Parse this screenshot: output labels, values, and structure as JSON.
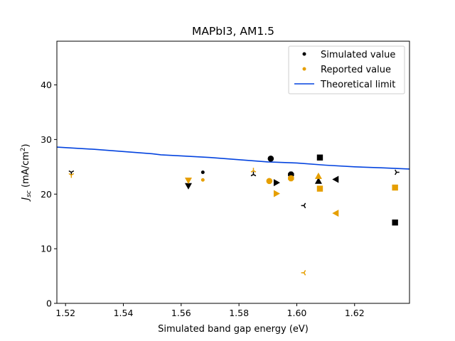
{
  "chart_data": {
    "type": "scatter",
    "title": "MAPbI3, AM1.5",
    "xlabel": "Simulated band gap energy (eV)",
    "ylabel_main": "J",
    "ylabel_sub": "sc",
    "ylabel_unit": " (mA/cm",
    "ylabel_sup": "2",
    "ylabel_close": ")",
    "xlim": [
      1.517,
      1.639
    ],
    "ylim": [
      0,
      48
    ],
    "xticks": [
      1.52,
      1.54,
      1.56,
      1.58,
      1.6,
      1.62
    ],
    "xtick_labels": [
      "1.52",
      "1.54",
      "1.56",
      "1.58",
      "1.60",
      "1.62"
    ],
    "yticks": [
      0,
      10,
      20,
      30,
      40
    ],
    "ytick_labels": [
      "0",
      "10",
      "20",
      "30",
      "40"
    ],
    "grid": false,
    "legend_position": "top-right",
    "colors": {
      "simulated": "#000000",
      "reported": "#e69f00",
      "limit": "#0343df"
    },
    "legend": [
      {
        "label": "Simulated value",
        "kind": "point",
        "color": "#000000"
      },
      {
        "label": "Reported value",
        "kind": "point",
        "color": "#e69f00"
      },
      {
        "label": "Theoretical limit",
        "kind": "line",
        "color": "#0343df"
      }
    ],
    "series": [
      {
        "name": "Simulated value",
        "color": "#000000",
        "points": [
          {
            "x": 1.522,
            "y": 24.0,
            "marker": "tri_down"
          },
          {
            "x": 1.5625,
            "y": 21.5,
            "marker": "triangle_down"
          },
          {
            "x": 1.5675,
            "y": 24.0,
            "marker": "point"
          },
          {
            "x": 1.585,
            "y": 23.6,
            "marker": "tri_up"
          },
          {
            "x": 1.591,
            "y": 26.5,
            "marker": "circle"
          },
          {
            "x": 1.593,
            "y": 22.1,
            "marker": "triangle_right"
          },
          {
            "x": 1.598,
            "y": 23.6,
            "marker": "octagon"
          },
          {
            "x": 1.6025,
            "y": 17.9,
            "marker": "tri_left"
          },
          {
            "x": 1.6075,
            "y": 22.4,
            "marker": "triangle_up"
          },
          {
            "x": 1.608,
            "y": 26.7,
            "marker": "square"
          },
          {
            "x": 1.6135,
            "y": 22.7,
            "marker": "triangle_left"
          },
          {
            "x": 1.6345,
            "y": 24.0,
            "marker": "tri_right"
          },
          {
            "x": 1.634,
            "y": 14.8,
            "marker": "square"
          }
        ]
      },
      {
        "name": "Reported value",
        "color": "#e69f00",
        "points": [
          {
            "x": 1.522,
            "y": 23.5,
            "marker": "tri_down"
          },
          {
            "x": 1.5625,
            "y": 22.5,
            "marker": "triangle_down"
          },
          {
            "x": 1.5675,
            "y": 22.6,
            "marker": "point"
          },
          {
            "x": 1.585,
            "y": 24.3,
            "marker": "tri_up"
          },
          {
            "x": 1.5905,
            "y": 22.4,
            "marker": "circle"
          },
          {
            "x": 1.593,
            "y": 20.1,
            "marker": "triangle_right"
          },
          {
            "x": 1.598,
            "y": 22.9,
            "marker": "octagon"
          },
          {
            "x": 1.6025,
            "y": 5.6,
            "marker": "tri_left"
          },
          {
            "x": 1.6075,
            "y": 23.3,
            "marker": "triangle_up"
          },
          {
            "x": 1.608,
            "y": 21.0,
            "marker": "square"
          },
          {
            "x": 1.6135,
            "y": 16.5,
            "marker": "triangle_left"
          },
          {
            "x": 1.634,
            "y": 21.2,
            "marker": "square"
          }
        ]
      }
    ],
    "theoretical_limit": {
      "name": "Theoretical limit",
      "x": [
        1.517,
        1.53,
        1.54,
        1.55,
        1.553,
        1.56,
        1.57,
        1.58,
        1.59,
        1.6,
        1.61,
        1.62,
        1.63,
        1.639
      ],
      "y": [
        28.6,
        28.2,
        27.8,
        27.4,
        27.2,
        27.0,
        26.7,
        26.3,
        25.9,
        25.7,
        25.3,
        25.0,
        24.8,
        24.6
      ]
    }
  }
}
